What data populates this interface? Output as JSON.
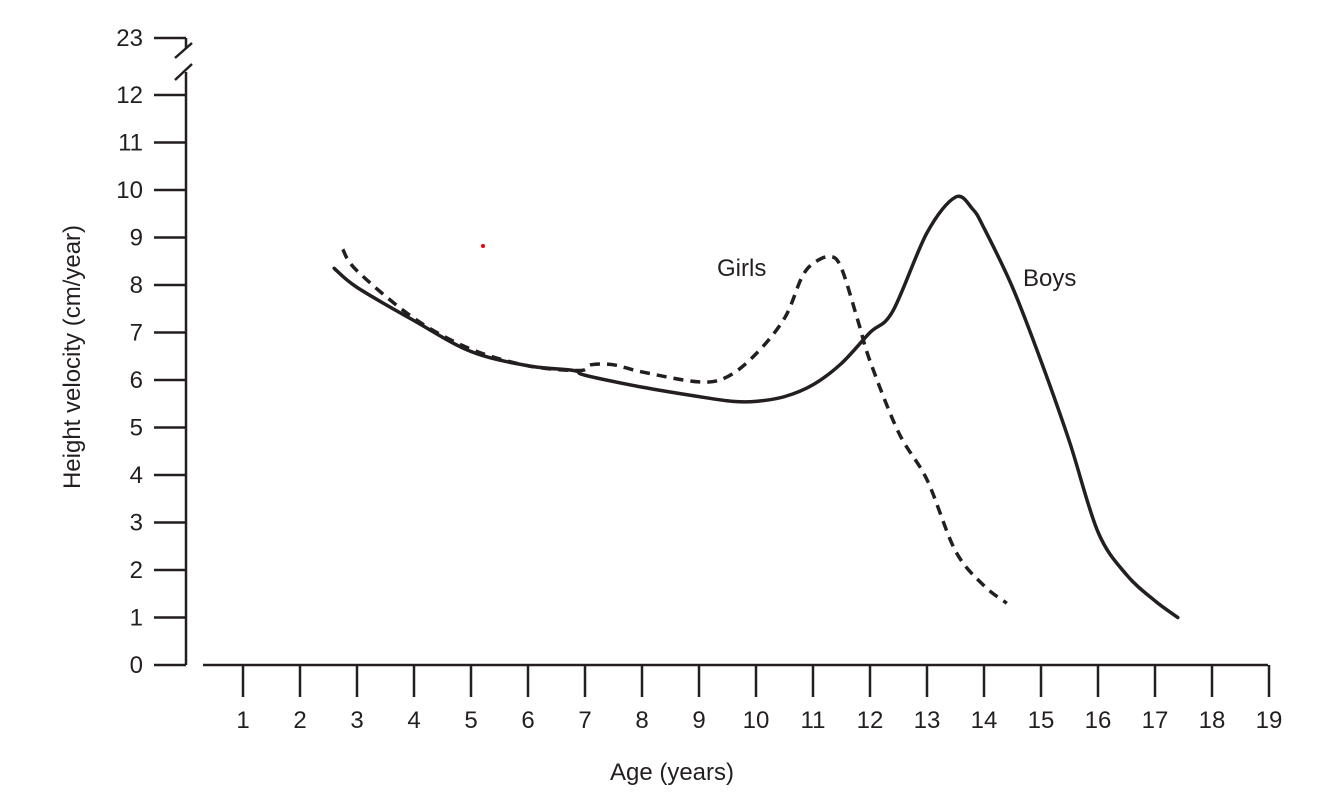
{
  "chart_data": {
    "type": "line",
    "title": "",
    "xlabel": "Age (years)",
    "ylabel": "Height velocity (cm/year)",
    "xlim": [
      0,
      19
    ],
    "ylim": [
      0,
      12
    ],
    "y_axis_break": {
      "from": 12,
      "to": 23
    },
    "x_ticks": [
      "1",
      "2",
      "3",
      "4",
      "5",
      "6",
      "7",
      "8",
      "9",
      "10",
      "11",
      "12",
      "13",
      "14",
      "15",
      "16",
      "17",
      "18",
      "19"
    ],
    "y_ticks": [
      "0",
      "1",
      "2",
      "3",
      "4",
      "5",
      "6",
      "7",
      "8",
      "9",
      "10",
      "11",
      "12",
      "23"
    ],
    "grid": false,
    "series": [
      {
        "name": "Boys",
        "style": "solid",
        "color": "#231f20",
        "x": [
          2.6,
          3,
          4,
          5,
          6,
          6.8,
          7,
          8,
          9,
          9.6,
          10,
          10.5,
          11,
          11.5,
          12,
          12.4,
          13,
          13.5,
          13.8,
          14,
          14.5,
          15,
          15.5,
          16,
          16.5,
          17,
          17.4
        ],
        "y": [
          8.35,
          7.95,
          7.25,
          6.6,
          6.3,
          6.2,
          6.1,
          5.85,
          5.65,
          5.55,
          5.55,
          5.65,
          5.9,
          6.35,
          7.0,
          7.45,
          9.1,
          9.85,
          9.6,
          9.2,
          7.95,
          6.4,
          4.7,
          2.8,
          1.9,
          1.35,
          1.0
        ]
      },
      {
        "name": "Girls",
        "style": "dashed",
        "color": "#231f20",
        "x": [
          2.75,
          3,
          4,
          5,
          6,
          6.9,
          7.1,
          7.5,
          8,
          9,
          9.5,
          10,
          10.5,
          10.8,
          11,
          11.3,
          11.5,
          11.8,
          12,
          12.5,
          13,
          13.5,
          14,
          14.4
        ],
        "y": [
          8.75,
          8.3,
          7.3,
          6.65,
          6.3,
          6.2,
          6.32,
          6.32,
          6.17,
          5.96,
          6.07,
          6.55,
          7.3,
          8.15,
          8.45,
          8.6,
          8.35,
          7.2,
          6.4,
          4.9,
          3.9,
          2.4,
          1.67,
          1.3
        ]
      }
    ],
    "annotations": [
      {
        "text": "Girls",
        "x": 10.5,
        "y": 8.3
      },
      {
        "text": "Boys",
        "x": 15.1,
        "y": 8.0
      }
    ]
  }
}
